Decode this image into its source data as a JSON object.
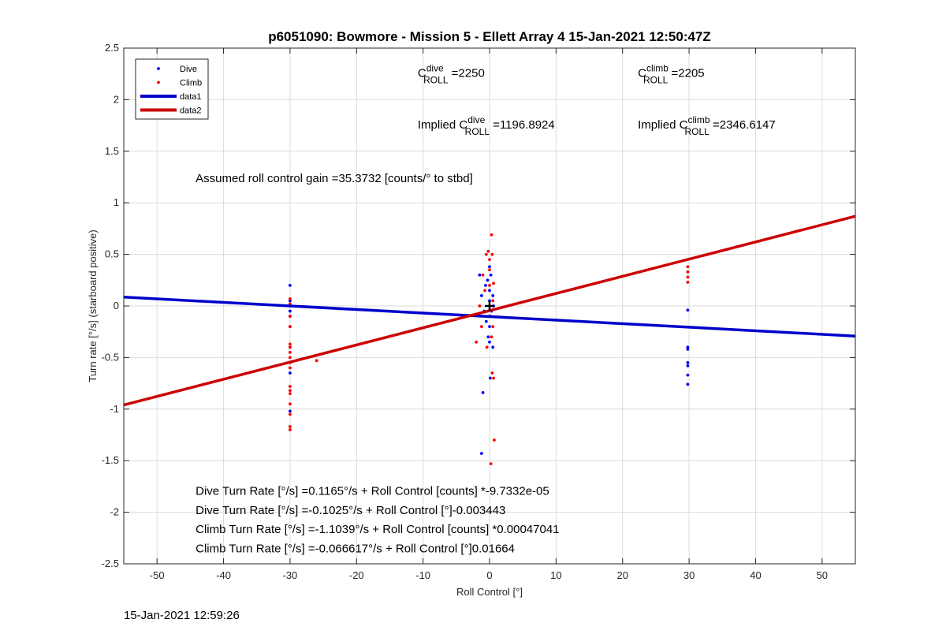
{
  "chart_data": {
    "type": "scatter",
    "title": "p6051090: Bowmore - Mission 5 - Ellett Array 4 15-Jan-2021 12:50:47Z",
    "xlabel": "Roll Control [°]",
    "ylabel": "Turn rate [°/s] (starboard positive)",
    "xlim": [
      -55,
      55
    ],
    "ylim": [
      -2.5,
      2.5
    ],
    "xticks": [
      -50,
      -40,
      -30,
      -20,
      -10,
      0,
      10,
      20,
      30,
      40,
      50
    ],
    "yticks": [
      -2.5,
      -2,
      -1.5,
      -1,
      -0.5,
      0,
      0.5,
      1,
      1.5,
      2,
      2.5
    ],
    "grid": true,
    "legend_position": "top-left",
    "legend": [
      {
        "label": "Dive",
        "type": "marker",
        "color": "#0000ff"
      },
      {
        "label": "Climb",
        "type": "marker",
        "color": "#ff0000"
      },
      {
        "label": "data1",
        "type": "line",
        "color": "#0000cc"
      },
      {
        "label": "data2",
        "type": "line",
        "color": "#cc0000"
      }
    ],
    "series": [
      {
        "name": "Dive",
        "type": "scatter",
        "color": "#0000ff",
        "points": [
          [
            -30,
            0.2
          ],
          [
            -30,
            0.05
          ],
          [
            -30,
            0.0
          ],
          [
            -30,
            -0.05
          ],
          [
            -30,
            -0.1
          ],
          [
            -30,
            -0.2
          ],
          [
            -30,
            -0.4
          ],
          [
            -30,
            -0.65
          ],
          [
            -30,
            -1.02
          ],
          [
            -1.2,
            -1.43
          ],
          [
            -1,
            -0.84
          ],
          [
            -1.5,
            0.3
          ],
          [
            -1.2,
            0.1
          ],
          [
            -0.8,
            -0.05
          ],
          [
            -0.6,
            0.2
          ],
          [
            -0.5,
            -0.15
          ],
          [
            -0.3,
            0.25
          ],
          [
            -0.2,
            -0.3
          ],
          [
            0,
            0.38
          ],
          [
            0,
            0.15
          ],
          [
            0,
            0.05
          ],
          [
            0,
            -0.1
          ],
          [
            0,
            -0.2
          ],
          [
            0,
            -0.35
          ],
          [
            0.2,
            0.3
          ],
          [
            0.3,
            -0.05
          ],
          [
            0.5,
            0.1
          ],
          [
            0.5,
            -0.4
          ],
          [
            0.1,
            -0.7
          ],
          [
            0.6,
            0.0
          ],
          [
            29.8,
            -0.04
          ],
          [
            29.8,
            -0.4
          ],
          [
            29.8,
            -0.42
          ],
          [
            29.8,
            -0.55
          ],
          [
            29.8,
            -0.58
          ],
          [
            29.8,
            -0.67
          ],
          [
            29.8,
            -0.76
          ]
        ]
      },
      {
        "name": "Climb",
        "type": "scatter",
        "color": "#ff0000",
        "points": [
          [
            -30,
            0.07
          ],
          [
            -30,
            0.02
          ],
          [
            -30,
            -0.1
          ],
          [
            -30,
            -0.2
          ],
          [
            -30,
            -0.37
          ],
          [
            -30,
            -0.4
          ],
          [
            -30,
            -0.45
          ],
          [
            -30,
            -0.5
          ],
          [
            -30,
            -0.55
          ],
          [
            -30,
            -0.6
          ],
          [
            -30,
            -0.78
          ],
          [
            -30,
            -0.82
          ],
          [
            -30,
            -0.85
          ],
          [
            -30,
            -0.95
          ],
          [
            -30,
            -1.05
          ],
          [
            -30,
            -1.17
          ],
          [
            -30,
            -1.2
          ],
          [
            -26,
            -0.53
          ],
          [
            -2,
            -0.35
          ],
          [
            -1.5,
            0.0
          ],
          [
            -1.2,
            -0.2
          ],
          [
            -1,
            0.3
          ],
          [
            -0.7,
            0.15
          ],
          [
            -0.5,
            0.5
          ],
          [
            -0.4,
            -0.4
          ],
          [
            -0.2,
            0.53
          ],
          [
            0,
            0.45
          ],
          [
            0,
            0.35
          ],
          [
            0,
            0.2
          ],
          [
            0.2,
            -0.1
          ],
          [
            0.3,
            0.69
          ],
          [
            0.3,
            -0.3
          ],
          [
            0.4,
            -0.65
          ],
          [
            0.4,
            0.5
          ],
          [
            0.5,
            -0.2
          ],
          [
            0.6,
            0.22
          ],
          [
            0.6,
            -0.7
          ],
          [
            0.7,
            -1.3
          ],
          [
            0.2,
            -1.53
          ],
          [
            0.5,
            0.05
          ],
          [
            29.8,
            0.45
          ],
          [
            29.8,
            0.38
          ],
          [
            29.8,
            0.33
          ],
          [
            29.8,
            0.28
          ],
          [
            29.8,
            0.23
          ]
        ]
      },
      {
        "name": "data1",
        "type": "line",
        "color": "#0000cc",
        "points": [
          [
            -55,
            0.086
          ],
          [
            55,
            -0.292
          ]
        ]
      },
      {
        "name": "data2",
        "type": "line",
        "color": "#cc0000",
        "points": [
          [
            -55,
            -0.96
          ],
          [
            55,
            0.87
          ]
        ]
      }
    ],
    "centroid_marker": {
      "x": 0,
      "y": 0,
      "color": "#000000"
    },
    "annotations": [
      {
        "id": "cdive",
        "prefix": "C",
        "sup": "dive",
        "sub": "ROLL",
        "suffix": " =2250",
        "x": -10.8,
        "y": 2.22
      },
      {
        "id": "cclimb",
        "prefix": "C",
        "sup": "climb",
        "sub": "ROLL",
        "suffix": " =2205",
        "x": 22.3,
        "y": 2.22
      },
      {
        "id": "implied-dive",
        "prefix": "Implied C",
        "sup": "dive",
        "sub": "ROLL",
        "suffix": " =1196.8924",
        "x": -10.8,
        "y": 1.72
      },
      {
        "id": "implied-climb",
        "prefix": "Implied C",
        "sup": "climb",
        "sub": "ROLL",
        "suffix": " =2346.6147",
        "x": 22.3,
        "y": 1.72
      },
      {
        "id": "gain",
        "text": "Assumed roll control gain =35.3732 [counts/° to stbd]",
        "x": -44.2,
        "y": 1.2
      },
      {
        "id": "eq1",
        "text": "Dive Turn Rate [°/s] =0.1165°/s + Roll Control [counts] *-9.7332e-05",
        "x": -44.2,
        "y": -1.83
      },
      {
        "id": "eq2",
        "text": "Dive Turn Rate [°/s] =-0.1025°/s + Roll Control [°]-0.003443",
        "x": -44.2,
        "y": -2.02
      },
      {
        "id": "eq3",
        "text": "Climb Turn Rate [°/s] =-1.1039°/s + Roll Control [counts] *0.00047041",
        "x": -44.2,
        "y": -2.2
      },
      {
        "id": "eq4",
        "text": "Climb Turn Rate [°/s] =-0.066617°/s + Roll Control [°]0.01664",
        "x": -44.2,
        "y": -2.39
      }
    ]
  },
  "footer_timestamp": "15-Jan-2021 12:59:26"
}
